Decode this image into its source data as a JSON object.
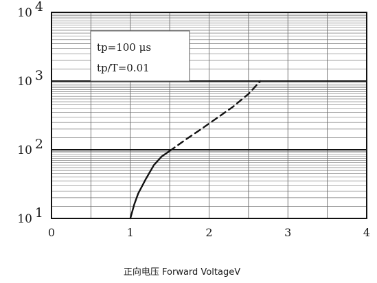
{
  "chart_data": {
    "type": "line",
    "xlabel": "正向电压  Forward VoltageV",
    "x_ticks": [
      "0",
      "1",
      "2",
      "3",
      "4"
    ],
    "y_ticks": [
      {
        "base": "10",
        "exp": "1"
      },
      {
        "base": "10",
        "exp": "2"
      },
      {
        "base": "10",
        "exp": "3"
      },
      {
        "base": "10",
        "exp": "4"
      }
    ],
    "xlim": [
      0,
      4
    ],
    "ylim": [
      10,
      10000
    ],
    "y_scale": "log",
    "grid": true,
    "annotation": [
      "tp=100 μs",
      "tp/T=0.01"
    ],
    "series": [
      {
        "style": "solid",
        "points": [
          [
            1.0,
            10
          ],
          [
            1.05,
            16
          ],
          [
            1.1,
            23
          ],
          [
            1.2,
            38
          ],
          [
            1.3,
            60
          ],
          [
            1.4,
            80
          ],
          [
            1.5,
            96
          ]
        ]
      },
      {
        "style": "dashed",
        "points": [
          [
            1.5,
            96
          ],
          [
            1.7,
            140
          ],
          [
            1.9,
            200
          ],
          [
            2.1,
            290
          ],
          [
            2.3,
            420
          ],
          [
            2.5,
            650
          ],
          [
            2.65,
            1000
          ]
        ]
      }
    ]
  }
}
